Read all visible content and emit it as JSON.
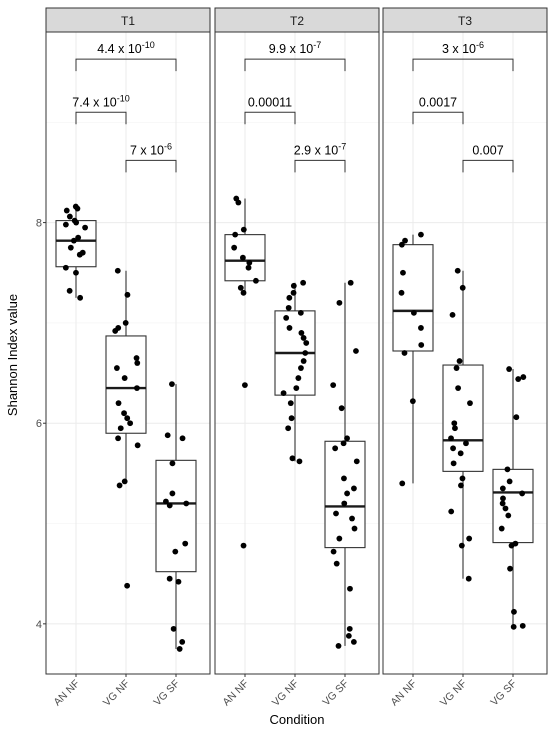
{
  "chart_data": {
    "type": "boxplot",
    "xlabel": "Condition",
    "ylabel": "Shannon Index value",
    "categories": [
      "AN NF",
      "VG NF",
      "VG SF"
    ],
    "ylim": [
      3.5,
      9.9
    ],
    "y_ticks": [
      4,
      6,
      8
    ],
    "grid": true,
    "facets": [
      {
        "label": "T1",
        "boxes": [
          {
            "category": "AN NF",
            "q1": 7.56,
            "median": 7.82,
            "q3": 8.02,
            "whisker_low": 7.25,
            "whisker_high": 8.16
          },
          {
            "category": "VG NF",
            "q1": 5.9,
            "median": 6.35,
            "q3": 6.87,
            "whisker_low": 5.42,
            "whisker_high": 7.52
          },
          {
            "category": "VG SF",
            "q1": 4.52,
            "median": 5.2,
            "q3": 5.63,
            "whisker_low": 3.75,
            "whisker_high": 6.39
          }
        ],
        "points": {
          "AN NF": [
            8.16,
            8.14,
            8.12,
            8.06,
            8.02,
            8.0,
            7.98,
            7.95,
            7.85,
            7.82,
            7.75,
            7.7,
            7.68,
            7.55,
            7.5,
            7.32,
            7.25
          ],
          "VG NF": [
            7.52,
            7.28,
            7.0,
            6.95,
            6.92,
            6.65,
            6.6,
            6.55,
            6.45,
            6.35,
            6.2,
            6.1,
            6.05,
            6.0,
            5.95,
            5.85,
            5.78,
            5.42,
            5.38,
            4.38
          ],
          "VG SF": [
            6.39,
            5.88,
            5.85,
            5.6,
            5.3,
            5.22,
            5.2,
            5.18,
            4.8,
            4.72,
            4.45,
            4.42,
            3.95,
            3.82,
            3.75
          ]
        },
        "comparisons": [
          {
            "from": "AN NF",
            "to": "VG NF",
            "label": "7.4 x 10",
            "exp": "-10"
          },
          {
            "from": "VG NF",
            "to": "VG SF",
            "label": "7 x 10",
            "exp": "-6"
          },
          {
            "from": "AN NF",
            "to": "VG SF",
            "label": "4.4 x 10",
            "exp": "-10"
          }
        ]
      },
      {
        "label": "T2",
        "boxes": [
          {
            "category": "AN NF",
            "q1": 7.42,
            "median": 7.62,
            "q3": 7.88,
            "whisker_low": 7.3,
            "whisker_high": 8.24
          },
          {
            "category": "VG NF",
            "q1": 6.28,
            "median": 6.7,
            "q3": 7.12,
            "whisker_low": 5.62,
            "whisker_high": 7.4
          },
          {
            "category": "VG SF",
            "q1": 4.76,
            "median": 5.17,
            "q3": 5.82,
            "whisker_low": 3.78,
            "whisker_high": 7.4
          }
        ],
        "points": {
          "AN NF": [
            8.24,
            8.2,
            7.93,
            7.88,
            7.75,
            7.65,
            7.6,
            7.55,
            7.42,
            7.35,
            7.3,
            6.38,
            4.78
          ],
          "VG NF": [
            7.4,
            7.37,
            7.3,
            7.25,
            7.15,
            7.1,
            7.05,
            6.95,
            6.9,
            6.85,
            6.8,
            6.7,
            6.62,
            6.55,
            6.45,
            6.35,
            6.3,
            6.2,
            6.05,
            5.95,
            5.65,
            5.62
          ],
          "VG SF": [
            7.4,
            7.2,
            6.72,
            6.38,
            6.15,
            5.85,
            5.8,
            5.75,
            5.62,
            5.45,
            5.35,
            5.3,
            5.2,
            5.1,
            5.05,
            4.95,
            4.85,
            4.72,
            4.6,
            4.35,
            3.95,
            3.88,
            3.82,
            3.78
          ]
        },
        "comparisons": [
          {
            "from": "AN NF",
            "to": "VG NF",
            "label": "0.00011",
            "exp": ""
          },
          {
            "from": "VG NF",
            "to": "VG SF",
            "label": "2.9 x 10",
            "exp": "-7"
          },
          {
            "from": "AN NF",
            "to": "VG SF",
            "label": "9.9 x 10",
            "exp": "-7"
          }
        ]
      },
      {
        "label": "T3",
        "boxes": [
          {
            "category": "AN NF",
            "q1": 6.72,
            "median": 7.12,
            "q3": 7.78,
            "whisker_low": 5.4,
            "whisker_high": 7.88
          },
          {
            "category": "VG NF",
            "q1": 5.52,
            "median": 5.83,
            "q3": 6.58,
            "whisker_low": 4.45,
            "whisker_high": 7.52
          },
          {
            "category": "VG SF",
            "q1": 4.81,
            "median": 5.31,
            "q3": 5.54,
            "whisker_low": 3.97,
            "whisker_high": 6.54
          }
        ],
        "points": {
          "AN NF": [
            7.88,
            7.82,
            7.78,
            7.5,
            7.3,
            7.1,
            6.95,
            6.78,
            6.7,
            6.22,
            5.4
          ],
          "VG NF": [
            7.52,
            7.35,
            7.08,
            6.62,
            6.55,
            6.35,
            6.2,
            6.0,
            5.95,
            5.85,
            5.8,
            5.75,
            5.7,
            5.6,
            5.45,
            5.38,
            5.12,
            4.85,
            4.78,
            4.45
          ],
          "VG SF": [
            6.54,
            6.46,
            6.44,
            6.06,
            5.54,
            5.42,
            5.35,
            5.3,
            5.25,
            5.2,
            5.15,
            5.08,
            4.95,
            4.8,
            4.78,
            4.55,
            4.12,
            3.98,
            3.97
          ]
        },
        "comparisons": [
          {
            "from": "AN NF",
            "to": "VG NF",
            "label": "0.0017",
            "exp": ""
          },
          {
            "from": "VG NF",
            "to": "VG SF",
            "label": "0.007",
            "exp": ""
          },
          {
            "from": "AN NF",
            "to": "VG SF",
            "label": "3 x 10",
            "exp": "-6"
          }
        ]
      }
    ]
  }
}
